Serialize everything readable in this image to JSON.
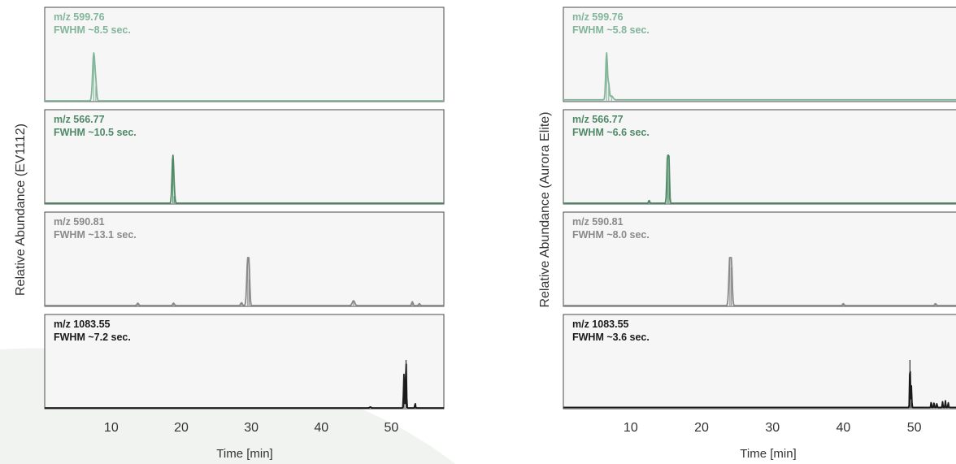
{
  "chart_data": [
    {
      "type": "line",
      "ylabel": "Relative Abundance (EV1112)",
      "xlabel": "Time [min]",
      "x_ticks": [
        "10",
        "20",
        "30",
        "40",
        "50"
      ],
      "xlim": [
        0.5,
        57.5
      ],
      "panels": [
        {
          "mz_label": "m/z 599.76",
          "fwhm_label": "FWHM ~8.5 sec.",
          "color": "#82b59a",
          "baseline": 0.0,
          "peaks": [
            {
              "x": 7.5,
              "y": 1.0,
              "w": 0.16
            },
            {
              "x": 7.8,
              "y": 0.3,
              "w": 0.12
            }
          ]
        },
        {
          "mz_label": "m/z 566.77",
          "fwhm_label": "FWHM ~10.5 sec.",
          "color": "#4f8a67",
          "baseline": 0.0,
          "peaks": [
            {
              "x": 18.8,
              "y": 1.0,
              "w": 0.12
            },
            {
              "x": 19.0,
              "y": 0.15,
              "w": 0.1
            }
          ]
        },
        {
          "mz_label": "m/z 590.81",
          "fwhm_label": "FWHM ~13.1 sec.",
          "color": "#8a8a8a",
          "baseline": 0.0,
          "peaks": [
            {
              "x": 13.8,
              "y": 0.05,
              "w": 0.12
            },
            {
              "x": 18.9,
              "y": 0.05,
              "w": 0.12
            },
            {
              "x": 28.6,
              "y": 0.06,
              "w": 0.12
            },
            {
              "x": 29.5,
              "y": 1.0,
              "w": 0.14
            },
            {
              "x": 29.7,
              "y": 0.55,
              "w": 0.1
            },
            {
              "x": 44.6,
              "y": 0.1,
              "w": 0.18
            },
            {
              "x": 53.0,
              "y": 0.08,
              "w": 0.1
            },
            {
              "x": 54.0,
              "y": 0.04,
              "w": 0.1
            }
          ]
        },
        {
          "mz_label": "m/z 1083.55",
          "fwhm_label": "FWHM ~7.2 sec.",
          "color": "#1a1a1a",
          "baseline": 0.0,
          "peaks": [
            {
              "x": 47.0,
              "y": 0.02,
              "w": 0.1
            },
            {
              "x": 51.8,
              "y": 0.7,
              "w": 0.06
            },
            {
              "x": 52.1,
              "y": 1.0,
              "w": 0.06
            },
            {
              "x": 53.4,
              "y": 0.1,
              "w": 0.05
            }
          ]
        }
      ]
    },
    {
      "type": "line",
      "ylabel": "Relative Abundance (Aurora Elite)",
      "xlabel": "Time [min]",
      "x_ticks": [
        "10",
        "20",
        "30",
        "40",
        "50"
      ],
      "xlim": [
        0.5,
        57.5
      ],
      "panels": [
        {
          "mz_label": "m/z 599.76",
          "fwhm_label": "FWHM ~5.8 sec.",
          "color": "#82b59a",
          "baseline": 0.02,
          "peaks": [
            {
              "x": 6.6,
              "y": 1.0,
              "w": 0.12
            },
            {
              "x": 6.9,
              "y": 0.3,
              "w": 0.1
            },
            {
              "x": 7.3,
              "y": 0.08,
              "w": 0.2
            }
          ]
        },
        {
          "mz_label": "m/z 566.77",
          "fwhm_label": "FWHM ~6.6 sec.",
          "color": "#4f8a67",
          "baseline": 0.0,
          "peaks": [
            {
              "x": 12.6,
              "y": 0.06,
              "w": 0.08
            },
            {
              "x": 15.2,
              "y": 1.0,
              "w": 0.1
            },
            {
              "x": 15.4,
              "y": 0.85,
              "w": 0.08
            }
          ]
        },
        {
          "mz_label": "m/z 590.81",
          "fwhm_label": "FWHM ~8.0 sec.",
          "color": "#8a8a8a",
          "baseline": 0.0,
          "peaks": [
            {
              "x": 24.0,
              "y": 1.0,
              "w": 0.14
            },
            {
              "x": 24.2,
              "y": 0.8,
              "w": 0.12
            },
            {
              "x": 40.0,
              "y": 0.04,
              "w": 0.1
            },
            {
              "x": 53.0,
              "y": 0.04,
              "w": 0.1
            }
          ]
        },
        {
          "mz_label": "m/z 1083.55",
          "fwhm_label": "FWHM ~3.6 sec.",
          "color": "#1a1a1a",
          "baseline": 0.01,
          "peaks": [
            {
              "x": 49.4,
              "y": 1.0,
              "w": 0.05
            },
            {
              "x": 49.6,
              "y": 0.45,
              "w": 0.05
            },
            {
              "x": 52.4,
              "y": 0.12,
              "w": 0.05
            },
            {
              "x": 52.8,
              "y": 0.1,
              "w": 0.05
            },
            {
              "x": 53.2,
              "y": 0.08,
              "w": 0.05
            },
            {
              "x": 54.0,
              "y": 0.12,
              "w": 0.05
            },
            {
              "x": 54.4,
              "y": 0.14,
              "w": 0.05
            },
            {
              "x": 54.8,
              "y": 0.1,
              "w": 0.05
            }
          ]
        }
      ]
    }
  ]
}
